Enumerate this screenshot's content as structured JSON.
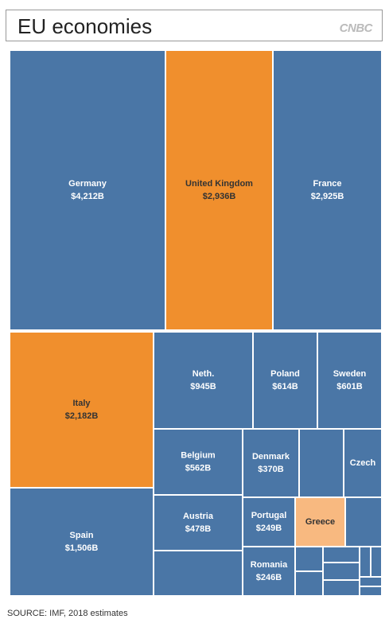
{
  "chart_data": {
    "type": "treemap",
    "title": "EU economies",
    "brand": "CNBC",
    "source": "SOURCE: IMF, 2018 estimates",
    "categories": [
      "Germany",
      "United Kingdom",
      "France",
      "Italy",
      "Spain",
      "Neth.",
      "Poland",
      "Sweden",
      "Belgium",
      "Denmark",
      "Czech",
      "Austria",
      "Portugal",
      "Greece",
      "Romania"
    ],
    "values": [
      4212,
      2936,
      2925,
      2182,
      1506,
      945,
      614,
      601,
      562,
      370,
      243,
      478,
      249,
      228,
      246
    ],
    "value_labels": [
      "$4,212B",
      "$2,936B",
      "$2,925B",
      "$2,182B",
      "$1,506B",
      "$945B",
      "$614B",
      "$601B",
      "$562B",
      "$370B",
      null,
      "$478B",
      "$249B",
      null,
      "$246B"
    ],
    "colors": [
      "#4a76a6",
      "#f08f2d",
      "#4a76a6",
      "#f08f2d",
      "#4a76a6",
      "#4a76a6",
      "#4a76a6",
      "#4a76a6",
      "#4a76a6",
      "#4a76a6",
      "#4a76a6",
      "#4a76a6",
      "#4a76a6",
      "#f8b980",
      "#4a76a6"
    ]
  }
}
